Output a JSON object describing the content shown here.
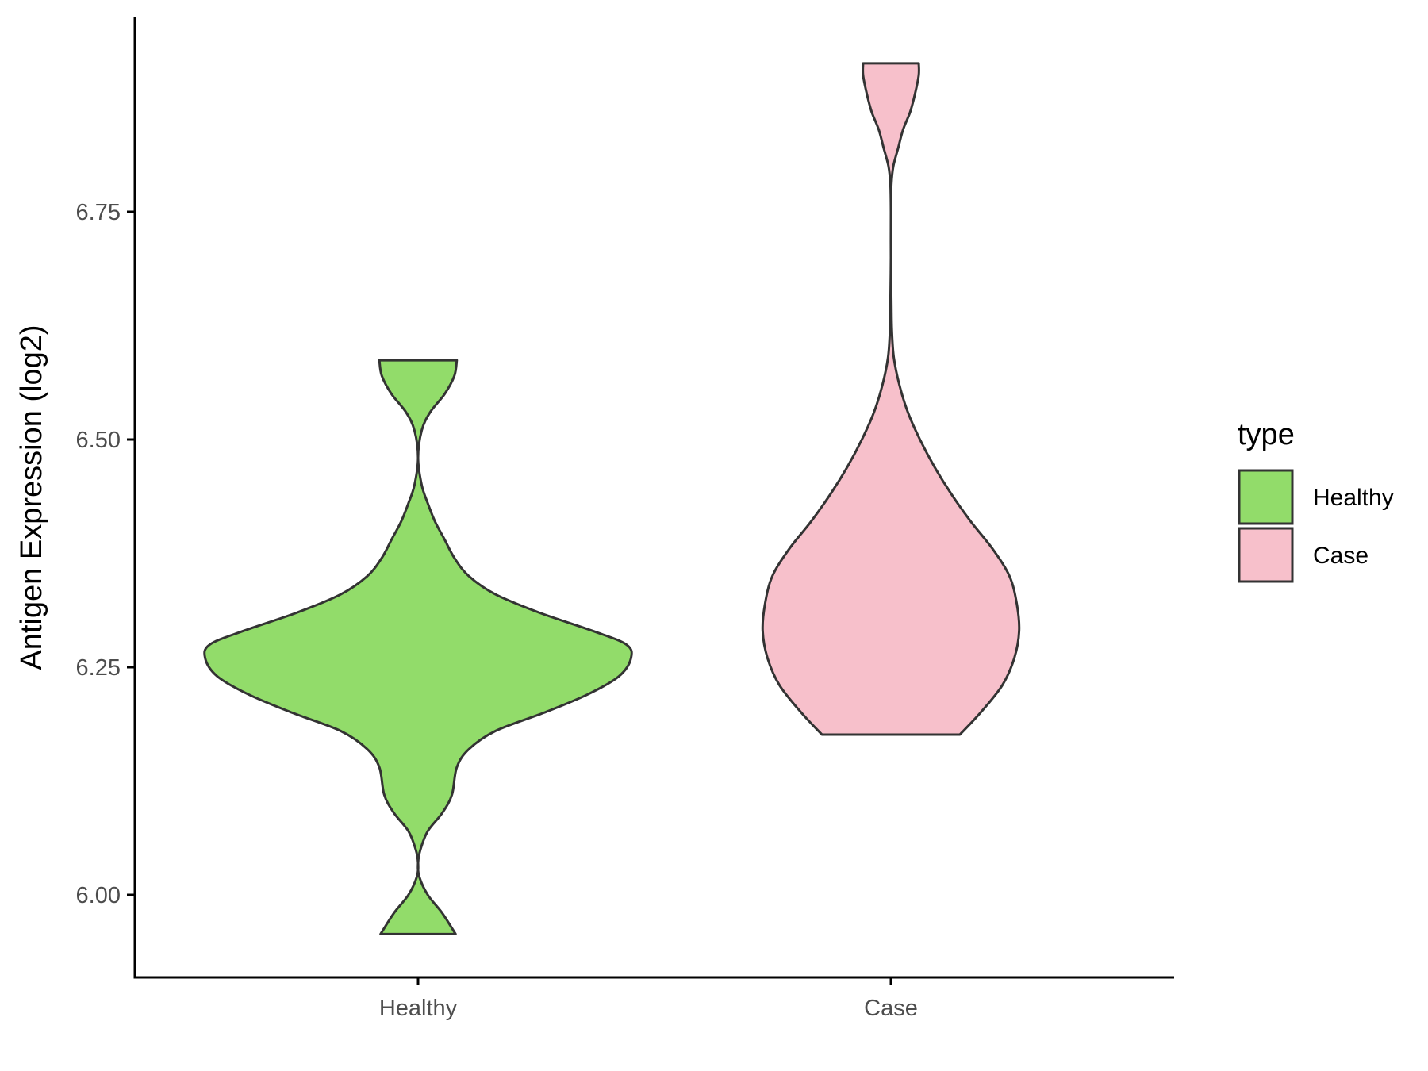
{
  "chart_data": {
    "type": "violin",
    "title": "",
    "xlabel": "",
    "ylabel": "Antigen Expression (log2)",
    "categories": [
      "Healthy",
      "Case"
    ],
    "y_ticks": [
      6.0,
      6.25,
      6.5,
      6.75
    ],
    "y_tick_labels": [
      "6.00",
      "6.25",
      "6.50",
      "6.75"
    ],
    "ylim": [
      5.91,
      6.96
    ],
    "grid": false,
    "legend": {
      "title": "type",
      "placement": "right",
      "entries": [
        {
          "label": "Healthy",
          "color": "#92dc6a"
        },
        {
          "label": "Case",
          "color": "#f7c0cb"
        }
      ]
    },
    "series": [
      {
        "name": "Healthy",
        "color": "#92dc6a",
        "min": 5.957,
        "max": 6.587,
        "density_profile": [
          [
            5.957,
            0.155
          ],
          [
            5.98,
            0.1
          ],
          [
            6.0,
            0.04
          ],
          [
            6.02,
            0.005
          ],
          [
            6.035,
            0.0
          ],
          [
            6.05,
            0.01
          ],
          [
            6.07,
            0.04
          ],
          [
            6.09,
            0.1
          ],
          [
            6.11,
            0.14
          ],
          [
            6.14,
            0.16
          ],
          [
            6.16,
            0.21
          ],
          [
            6.18,
            0.32
          ],
          [
            6.2,
            0.52
          ],
          [
            6.22,
            0.7
          ],
          [
            6.24,
            0.83
          ],
          [
            6.26,
            0.88
          ],
          [
            6.275,
            0.86
          ],
          [
            6.29,
            0.72
          ],
          [
            6.31,
            0.5
          ],
          [
            6.33,
            0.32
          ],
          [
            6.35,
            0.21
          ],
          [
            6.37,
            0.15
          ],
          [
            6.39,
            0.11
          ],
          [
            6.41,
            0.07
          ],
          [
            6.43,
            0.04
          ],
          [
            6.45,
            0.015
          ],
          [
            6.48,
            0.0
          ],
          [
            6.51,
            0.015
          ],
          [
            6.53,
            0.05
          ],
          [
            6.55,
            0.11
          ],
          [
            6.57,
            0.15
          ],
          [
            6.587,
            0.16
          ]
        ]
      },
      {
        "name": "Case",
        "color": "#f7c0cb",
        "min": 6.176,
        "max": 6.913,
        "density_profile": [
          [
            6.176,
            0.285
          ],
          [
            6.2,
            0.37
          ],
          [
            6.23,
            0.46
          ],
          [
            6.26,
            0.51
          ],
          [
            6.29,
            0.53
          ],
          [
            6.32,
            0.52
          ],
          [
            6.35,
            0.49
          ],
          [
            6.38,
            0.42
          ],
          [
            6.41,
            0.33
          ],
          [
            6.44,
            0.25
          ],
          [
            6.47,
            0.18
          ],
          [
            6.5,
            0.12
          ],
          [
            6.53,
            0.07
          ],
          [
            6.56,
            0.035
          ],
          [
            6.59,
            0.012
          ],
          [
            6.62,
            0.004
          ],
          [
            6.65,
            0.002
          ],
          [
            6.7,
            0.0
          ],
          [
            6.75,
            0.0
          ],
          [
            6.78,
            0.002
          ],
          [
            6.8,
            0.01
          ],
          [
            6.82,
            0.03
          ],
          [
            6.84,
            0.05
          ],
          [
            6.86,
            0.08
          ],
          [
            6.88,
            0.1
          ],
          [
            6.9,
            0.115
          ],
          [
            6.913,
            0.115
          ]
        ]
      }
    ]
  }
}
